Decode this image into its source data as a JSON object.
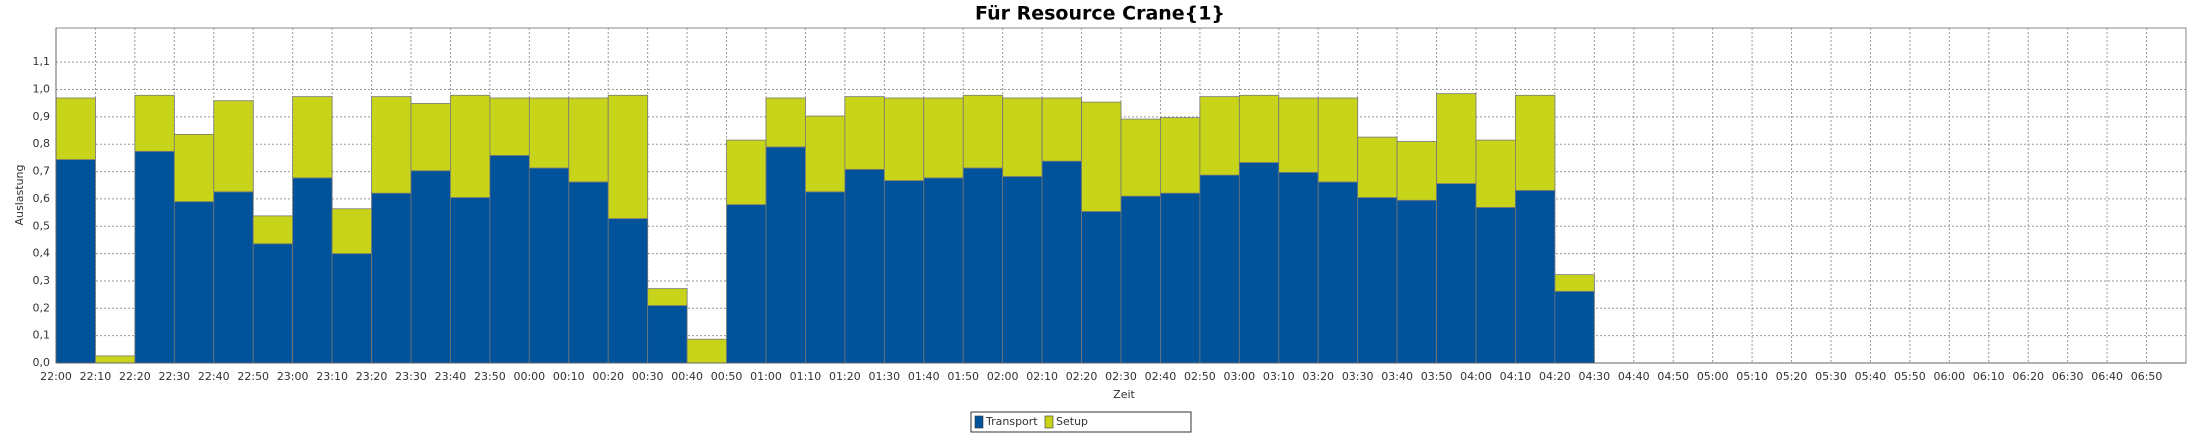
{
  "chart_data": {
    "type": "stacked_bar",
    "title": "Für Resource Crane{1}",
    "xlabel": "Zeit",
    "ylabel": "Auslastung",
    "categories": [
      "22:00",
      "22:10",
      "22:20",
      "22:30",
      "22:40",
      "22:50",
      "23:00",
      "23:10",
      "23:20",
      "23:30",
      "23:40",
      "23:50",
      "00:00",
      "00:10",
      "00:20",
      "00:30",
      "00:40",
      "00:50",
      "01:00",
      "01:10",
      "01:20",
      "01:30",
      "01:40",
      "01:50",
      "02:00",
      "02:10",
      "02:20",
      "02:30",
      "02:40",
      "02:50",
      "03:00",
      "03:10",
      "03:20",
      "03:30",
      "03:40",
      "03:50",
      "04:00",
      "04:10",
      "04:20",
      "04:30",
      "04:40",
      "04:50",
      "05:00",
      "05:10",
      "05:20",
      "05:30",
      "05:40",
      "05:50",
      "06:00",
      "06:10",
      "06:20",
      "06:30",
      "06:40",
      "06:50"
    ],
    "series": [
      {
        "name": "Transport",
        "color": "#00529b",
        "values": [
          0.744,
          0,
          0.774,
          0.59,
          0.626,
          0.436,
          0.677,
          0.4,
          0.621,
          0.703,
          0.605,
          0.759,
          0.713,
          0.662,
          0.528,
          0.21,
          0,
          0.579,
          0.79,
          0.626,
          0.708,
          0.667,
          0.677,
          0.713,
          0.682,
          0.738,
          0.554,
          0.61,
          0.621,
          0.687,
          0.733,
          0.697,
          0.662,
          0.605,
          0.595,
          0.656,
          0.569,
          0.631,
          0.262,
          null,
          null,
          null,
          null,
          null,
          null,
          null,
          null,
          null,
          null,
          null,
          null,
          null,
          null,
          null
        ]
      },
      {
        "name": "Setup",
        "color": "#c8d419",
        "values": [
          0.225,
          0.026,
          0.205,
          0.246,
          0.333,
          0.102,
          0.297,
          0.164,
          0.353,
          0.246,
          0.374,
          0.21,
          0.256,
          0.307,
          0.451,
          0.062,
          0.087,
          0.236,
          0.179,
          0.277,
          0.266,
          0.302,
          0.292,
          0.266,
          0.287,
          0.231,
          0.4,
          0.282,
          0.276,
          0.287,
          0.246,
          0.272,
          0.307,
          0.221,
          0.215,
          0.329,
          0.246,
          0.348,
          0.061,
          null,
          null,
          null,
          null,
          null,
          null,
          null,
          null,
          null,
          null,
          null,
          null,
          null,
          null,
          null
        ]
      }
    ],
    "ylim": [
      0,
      1.225
    ],
    "yticks": [
      {
        "value": 0,
        "label": "0,0"
      },
      {
        "value": 0.1,
        "label": "0,1"
      },
      {
        "value": 0.2,
        "label": "0,2"
      },
      {
        "value": 0.3,
        "label": "0,3"
      },
      {
        "value": 0.4,
        "label": "0,4"
      },
      {
        "value": 0.5,
        "label": "0,5"
      },
      {
        "value": 0.6,
        "label": "0,6"
      },
      {
        "value": 0.7,
        "label": "0,7"
      },
      {
        "value": 0.8,
        "label": "0,8"
      },
      {
        "value": 0.9,
        "label": "0,9"
      },
      {
        "value": 1.0,
        "label": "1,0"
      },
      {
        "value": 1.1,
        "label": "1,1"
      }
    ],
    "grid": true,
    "legend": "bottom"
  }
}
